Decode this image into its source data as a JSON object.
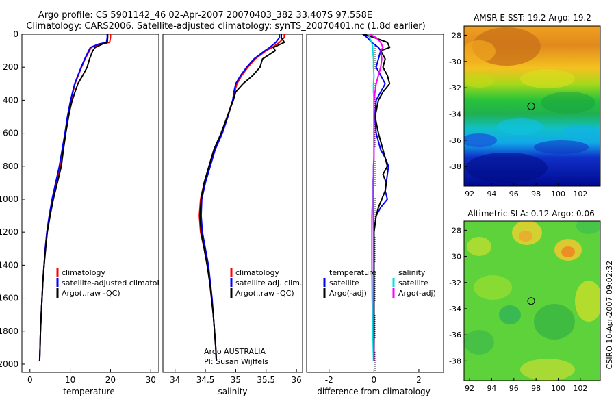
{
  "title_line1": "Argo profile: CS 5901142_46 02-Apr-2007 20070403_382 33.407S 97.558E",
  "title_line2": "Climatology: CARS2006. Satellite-adjusted climatology: synTS_20070401.nc (1.8d earlier)",
  "side_label": "CSIRO 10-Apr-2007 09:02:32",
  "chart_data": [
    {
      "type": "line",
      "id": "temperature",
      "xlabel": "temperature",
      "xlim": [
        -2,
        32
      ],
      "ylim": [
        0,
        2050
      ],
      "xticks": [
        "0",
        "10",
        "20",
        "30"
      ],
      "yticks": [
        "0",
        "200",
        "400",
        "600",
        "800",
        "1000",
        "1200",
        "1400",
        "1600",
        "1800",
        "2000"
      ],
      "legend": [
        "climatology",
        "satellite-adjusted climatology",
        "Argo(..raw -QC)"
      ],
      "depth": [
        0,
        20,
        50,
        60,
        80,
        100,
        150,
        200,
        250,
        300,
        350,
        400,
        450,
        500,
        600,
        700,
        800,
        900,
        1000,
        1100,
        1200,
        1300,
        1400,
        1500,
        1600,
        1700,
        1800,
        1900,
        1980
      ],
      "series": [
        {
          "name": "climatology",
          "color": "#ff0000",
          "values": [
            20.0,
            20.0,
            19.8,
            17.5,
            15.2,
            14.8,
            13.7,
            12.8,
            12.0,
            11.2,
            10.7,
            10.2,
            9.8,
            9.4,
            8.8,
            8.2,
            7.5,
            6.5,
            5.6,
            4.8,
            4.2,
            3.8,
            3.5,
            3.2,
            3.0,
            2.8,
            2.6,
            2.5,
            2.4
          ]
        },
        {
          "name": "satellite-adjusted climatology",
          "color": "#0000ff",
          "values": [
            19.2,
            19.2,
            19.0,
            17.0,
            15.0,
            14.6,
            13.6,
            12.7,
            11.9,
            11.1,
            10.6,
            10.1,
            9.7,
            9.3,
            8.7,
            8.0,
            7.3,
            6.4,
            5.5,
            4.8,
            4.2,
            3.8,
            3.5,
            3.2,
            3.0,
            2.8,
            2.6,
            2.5,
            2.4
          ]
        },
        {
          "name": "Argo(..raw -QC)",
          "color": "#000000",
          "values": [
            19.3,
            19.3,
            19.2,
            18.0,
            16.2,
            15.6,
            14.8,
            14.2,
            13.1,
            11.9,
            11.2,
            10.5,
            10.0,
            9.6,
            8.9,
            8.3,
            7.8,
            6.8,
            5.8,
            5.0,
            4.3,
            3.9,
            3.5,
            3.2,
            3.0,
            2.8,
            2.6,
            2.5,
            2.4
          ]
        }
      ]
    },
    {
      "type": "line",
      "id": "salinity",
      "xlabel": "salinity",
      "xlim": [
        33.8,
        36.1
      ],
      "ylim": [
        0,
        2050
      ],
      "xticks": [
        "34",
        "34.5",
        "35",
        "35.5",
        "36"
      ],
      "legend": [
        "climatology",
        "satellite adj. clim.",
        "Argo(..raw -QC)"
      ],
      "annotation1": "Argo AUSTRALIA",
      "annotation2": "PI: Susan Wijffels",
      "depth": [
        0,
        20,
        50,
        80,
        100,
        150,
        200,
        250,
        300,
        350,
        400,
        500,
        600,
        700,
        800,
        900,
        1000,
        1100,
        1200,
        1300,
        1400,
        1500,
        1600,
        1700,
        1800,
        1900,
        1980
      ],
      "series": [
        {
          "name": "climatology",
          "color": "#ff0000",
          "values": [
            35.8,
            35.8,
            35.72,
            35.6,
            35.5,
            35.32,
            35.2,
            35.1,
            35.02,
            34.98,
            34.95,
            34.86,
            34.76,
            34.64,
            34.56,
            34.48,
            34.42,
            34.4,
            34.42,
            34.48,
            34.53,
            34.57,
            34.6,
            34.63,
            34.65,
            34.67,
            34.68
          ]
        },
        {
          "name": "satellite adj. clim.",
          "color": "#0000ff",
          "values": [
            35.72,
            35.72,
            35.66,
            35.56,
            35.48,
            35.3,
            35.18,
            35.08,
            35.0,
            34.97,
            34.95,
            34.87,
            34.78,
            34.66,
            34.58,
            34.5,
            34.44,
            34.43,
            34.45,
            34.5,
            34.55,
            34.58,
            34.61,
            34.63,
            34.65,
            34.67,
            34.68
          ]
        },
        {
          "name": "Argo(..raw -QC)",
          "color": "#000000",
          "values": [
            35.75,
            35.75,
            35.8,
            35.62,
            35.65,
            35.44,
            35.4,
            35.28,
            35.12,
            35.0,
            34.96,
            34.86,
            34.76,
            34.64,
            34.56,
            34.48,
            34.43,
            34.41,
            34.43,
            34.48,
            34.53,
            34.57,
            34.6,
            34.63,
            34.65,
            34.67,
            34.68
          ]
        }
      ]
    },
    {
      "type": "line",
      "id": "difference",
      "xlabel": "difference from climatology",
      "xlim": [
        -3.0,
        3.1
      ],
      "ylim": [
        0,
        2050
      ],
      "xticks": [
        "-2",
        "0",
        "2"
      ],
      "legend_temperature": [
        "temperature",
        "satellite",
        "Argo(-adj)"
      ],
      "legend_salinity": [
        "salinity",
        "satellite",
        "Argo(-adj)"
      ],
      "depth": [
        0,
        20,
        50,
        80,
        100,
        150,
        200,
        250,
        300,
        350,
        400,
        500,
        600,
        700,
        750,
        800,
        850,
        900,
        950,
        1000,
        1050,
        1100,
        1200,
        1400,
        1600,
        1800,
        1980
      ],
      "series": [
        {
          "name": "temperature satellite",
          "color": "#0000ff",
          "values": [
            -0.5,
            -0.3,
            -0.1,
            0.2,
            0.3,
            0.2,
            0.1,
            0.3,
            0.5,
            0.3,
            0.1,
            0.05,
            0.1,
            0.3,
            0.5,
            0.65,
            0.6,
            0.55,
            0.5,
            0.6,
            0.3,
            0.1,
            0.0,
            0.0,
            0.0,
            0.0,
            0.0
          ]
        },
        {
          "name": "temperature Argo(-adj)",
          "color": "#000000",
          "values": [
            -0.5,
            0.0,
            0.6,
            0.7,
            0.3,
            0.5,
            0.4,
            0.6,
            0.7,
            0.4,
            0.2,
            0.05,
            0.2,
            0.4,
            0.5,
            0.6,
            0.4,
            0.55,
            0.5,
            0.35,
            0.2,
            0.1,
            0.0,
            0.0,
            0.0,
            0.0,
            0.0
          ]
        },
        {
          "name": "salinity satellite",
          "color": "#00e0e0",
          "values": [
            -0.2,
            -0.2,
            -0.1,
            -0.05,
            -0.05,
            -0.02,
            -0.02,
            0.0,
            -0.02,
            -0.02,
            0.0,
            0.0,
            0.0,
            0.0,
            0.0,
            -0.02,
            -0.02,
            -0.05,
            -0.05,
            -0.05,
            -0.08,
            -0.1,
            -0.1,
            -0.1,
            -0.08,
            -0.05,
            -0.02
          ]
        },
        {
          "name": "salinity Argo(-adj)",
          "color": "#ff00ff",
          "values": [
            -0.2,
            0.1,
            0.3,
            0.4,
            0.3,
            0.35,
            0.3,
            0.2,
            0.1,
            0.05,
            0.0,
            0.0,
            0.0,
            0.0,
            0.0,
            -0.02,
            -0.02,
            -0.03,
            -0.03,
            -0.03,
            -0.03,
            -0.03,
            -0.02,
            -0.02,
            -0.02,
            -0.01,
            0.0
          ]
        }
      ]
    },
    {
      "type": "heatmap",
      "id": "sst-map",
      "title": "AMSR-E SST: 19.2  Argo: 19.2",
      "xticks": [
        "92",
        "94",
        "96",
        "98",
        "100",
        "102"
      ],
      "yticks": [
        "-28",
        "-30",
        "-32",
        "-34",
        "-36",
        "-38"
      ],
      "xlim": [
        91.5,
        103.8
      ],
      "ylim": [
        -39.5,
        -27.3
      ],
      "marker": {
        "lon": 97.56,
        "lat": -33.41
      }
    },
    {
      "type": "heatmap",
      "id": "sla-map",
      "title": "Altimetric SLA: 0.12  Argo: 0.06",
      "xticks": [
        "92",
        "94",
        "96",
        "98",
        "100",
        "102"
      ],
      "yticks": [
        "-28",
        "-30",
        "-32",
        "-34",
        "-36",
        "-38"
      ],
      "xlim": [
        91.5,
        103.8
      ],
      "ylim": [
        -39.5,
        -27.3
      ],
      "marker": {
        "lon": 97.56,
        "lat": -33.41
      }
    }
  ]
}
